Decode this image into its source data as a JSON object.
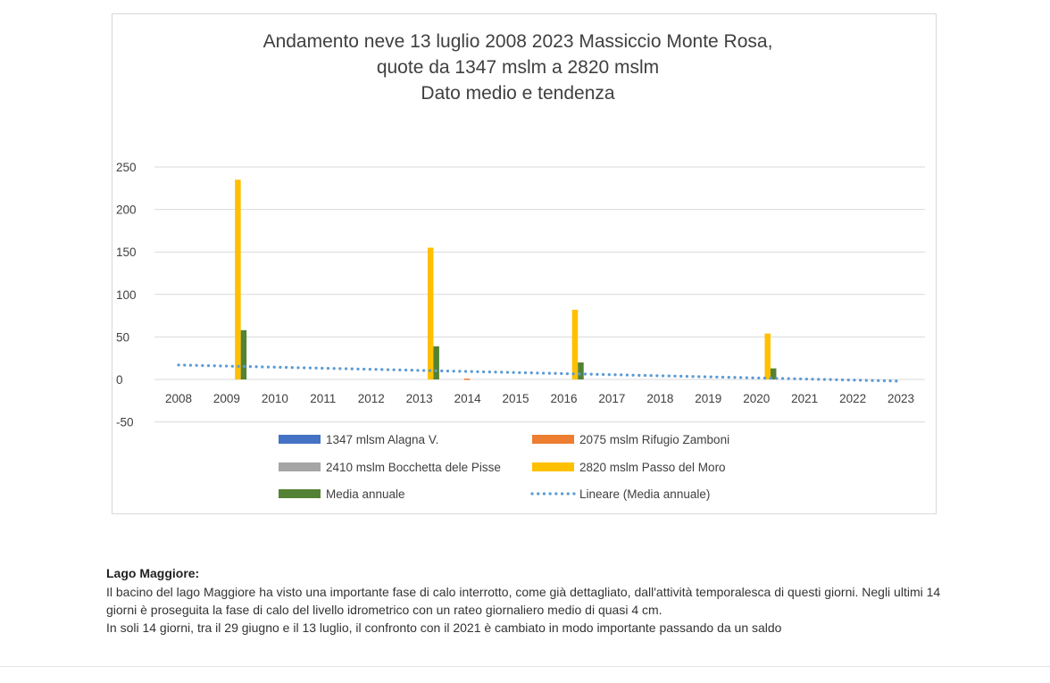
{
  "chart_data": {
    "type": "bar",
    "title_lines": [
      "Andamento neve 13 luglio 2008 2023 Massiccio Monte Rosa,",
      "quote da 1347 mslm a 2820 mslm",
      "Dato medio e tendenza"
    ],
    "xlabel": "",
    "ylabel": "",
    "ylim": [
      -50,
      250
    ],
    "yticks": [
      "250",
      "200",
      "150",
      "100",
      "50",
      "0",
      "-50"
    ],
    "categories": [
      "2008",
      "2009",
      "2010",
      "2011",
      "2012",
      "2013",
      "2014",
      "2015",
      "2016",
      "2017",
      "2018",
      "2019",
      "2020",
      "2021",
      "2022",
      "2023"
    ],
    "series": [
      {
        "name": "1347 mlsm Alagna V.",
        "color": "#4472c4",
        "kind": "bar",
        "values": [
          0,
          0,
          0,
          0,
          0,
          0,
          0,
          0,
          0,
          0,
          0,
          0,
          0,
          0,
          0,
          0
        ]
      },
      {
        "name": "2075 mslm Rifugio Zamboni",
        "color": "#ed7d31",
        "kind": "bar",
        "values": [
          0,
          0,
          0,
          0,
          0,
          0,
          1,
          0,
          0,
          0,
          0,
          0,
          0,
          0,
          0,
          0
        ]
      },
      {
        "name": "2410 mslm Bocchetta dele Pisse",
        "color": "#a5a5a5",
        "kind": "bar",
        "values": [
          0,
          0,
          0,
          0,
          0,
          0,
          0,
          0,
          0,
          0,
          0,
          0,
          0,
          0,
          0,
          0
        ]
      },
      {
        "name": "2820 mslm Passo del Moro",
        "color": "#ffc000",
        "kind": "bar",
        "values": [
          0,
          235,
          0,
          0,
          0,
          155,
          0,
          0,
          82,
          0,
          0,
          0,
          54,
          0,
          0,
          0
        ]
      },
      {
        "name": "Media annuale",
        "color": "#548235",
        "kind": "bar",
        "values": [
          0,
          58,
          0,
          0,
          0,
          39,
          0,
          0,
          20,
          0,
          0,
          0,
          13,
          0,
          0,
          0
        ]
      },
      {
        "name": "Lineare (Media annuale)",
        "color": "#5b9bd5",
        "kind": "trendline",
        "start": 17,
        "end": -2
      }
    ],
    "grid": true,
    "legend_position": "bottom"
  },
  "article": {
    "heading": "Lago Maggiore:",
    "paragraphs": [
      "Il bacino del lago Maggiore ha visto una importante fase di calo interrotto, come già dettagliato, dall'attività temporalesca di questi giorni. Negli ultimi 14 giorni è proseguita la fase di calo del livello idrometrico con un rateo giornaliero medio di quasi 4 cm.",
      "In soli 14 giorni, tra il 29 giugno e il 13 luglio, il confronto con il 2021 è cambiato in modo importante passando da un saldo"
    ]
  }
}
